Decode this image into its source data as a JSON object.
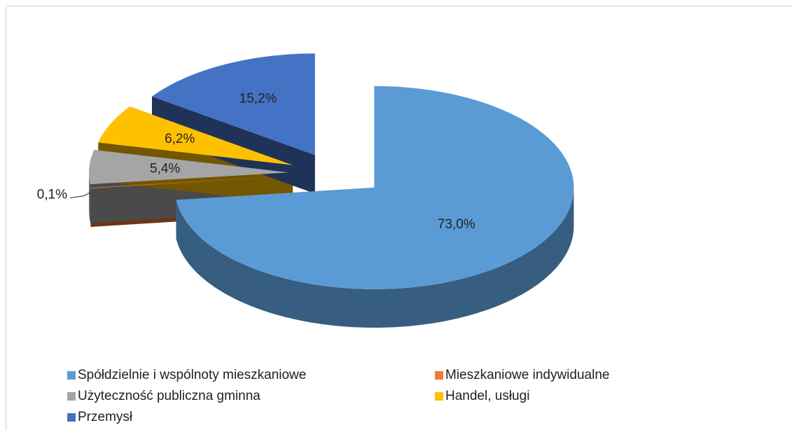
{
  "chart_data": {
    "type": "pie",
    "categories": [
      "Spółdzielnie i wspólnoty mieszkaniowe",
      "Mieszkaniowe indywidualne",
      "Użyteczność publiczna gminna",
      "Handel, usługi",
      "Przemysł"
    ],
    "values": [
      73.0,
      0.1,
      5.4,
      6.2,
      15.2
    ],
    "value_labels": [
      "73,0%",
      "0,1%",
      "5,4%",
      "6,2%",
      "15,2%"
    ],
    "colors": [
      "#5b9bd5",
      "#ed7d31",
      "#a5a5a5",
      "#ffc000",
      "#4472c4"
    ],
    "legend": "bottom"
  }
}
